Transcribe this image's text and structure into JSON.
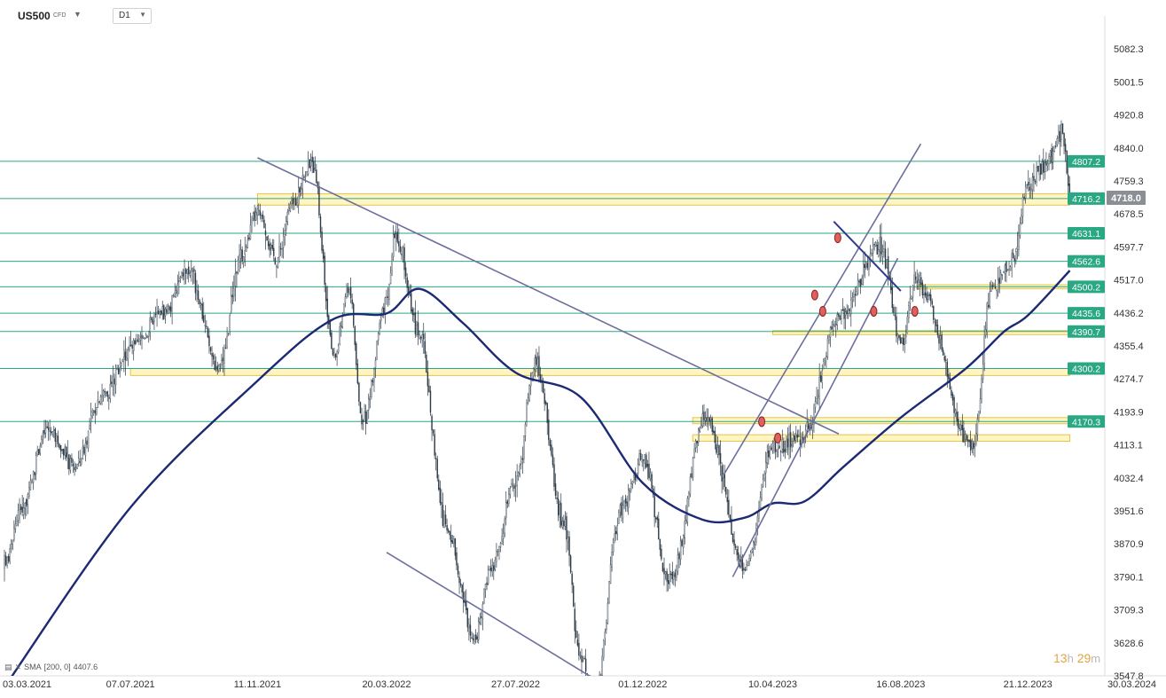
{
  "toolbar": {
    "symbol": "US500",
    "symbol_type": "CFD",
    "timeframe": "D1"
  },
  "indicator": {
    "label": "SMA",
    "params": "[200, 0]",
    "value": "4407.6"
  },
  "timer": {
    "hours": "13",
    "hours_unit": "h",
    "minutes": "29",
    "minutes_unit": "m"
  },
  "chart_data": {
    "type": "candlestick",
    "symbol": "US500",
    "timeframe": "D1",
    "x_range": [
      "03.03.2021",
      "30.03.2024"
    ],
    "x_ticks": [
      "03.03.2021",
      "07.07.2021",
      "11.11.2021",
      "20.03.2022",
      "27.07.2022",
      "01.12.2022",
      "10.04.2023",
      "16.08.2023",
      "21.12.2023",
      "30.03.2024"
    ],
    "y_range": [
      3547.8,
      5163.1
    ],
    "y_ticks": [
      "5082.3",
      "5001.5",
      "4920.8",
      "4840.0",
      "4759.3",
      "4678.5",
      "4597.7",
      "4517.0",
      "4436.2",
      "4355.4",
      "4274.7",
      "4193.9",
      "4113.1",
      "4032.4",
      "3951.6",
      "3870.9",
      "3790.1",
      "3709.3",
      "3628.6",
      "3547.8"
    ],
    "current_price": "4718.0",
    "price_path": [
      [
        "03.03.2021",
        3820
      ],
      [
        "2021-03-20",
        3960
      ],
      [
        "2021-04-15",
        4150
      ],
      [
        "2021-05-12",
        4060
      ],
      [
        "2021-06-10",
        4240
      ],
      [
        "07.07.2021",
        4350
      ],
      [
        "2021-08-10",
        4440
      ],
      [
        "2021-09-02",
        4540
      ],
      [
        "2021-10-04",
        4300
      ],
      [
        "2021-10-25",
        4570
      ],
      [
        "11.11.2021",
        4680
      ],
      [
        "2021-11-30",
        4570
      ],
      [
        "2021-12-15",
        4700
      ],
      [
        "2022-01-04",
        4800
      ],
      [
        "2022-01-27",
        4330
      ],
      [
        "2022-02-10",
        4500
      ],
      [
        "2022-02-24",
        4170
      ],
      [
        "20.03.2022",
        4460
      ],
      [
        "2022-03-29",
        4630
      ],
      [
        "2022-04-20",
        4400
      ],
      [
        "2022-05-20",
        3900
      ],
      [
        "2022-06-16",
        3640
      ],
      [
        "2022-07-01",
        3800
      ],
      [
        "27.07.2022",
        4020
      ],
      [
        "2022-08-16",
        4310
      ],
      [
        "2022-09-13",
        3930
      ],
      [
        "2022-09-30",
        3590
      ],
      [
        "2022-10-13",
        3500
      ],
      [
        "2022-11-10",
        3960
      ],
      [
        "01.12.2022",
        4080
      ],
      [
        "2022-12-28",
        3780
      ],
      [
        "2023-02-02",
        4180
      ],
      [
        "2023-03-13",
        3810
      ],
      [
        "10.04.2023",
        4110
      ],
      [
        "2023-05-10",
        4130
      ],
      [
        "2023-06-15",
        4430
      ],
      [
        "2023-07-27",
        4600
      ],
      [
        "16.08.2023",
        4370
      ],
      [
        "2023-09-01",
        4510
      ],
      [
        "2023-10-27",
        4110
      ],
      [
        "2023-11-15",
        4500
      ],
      [
        "2023-12-05",
        4560
      ],
      [
        "21.12.2023",
        4746
      ],
      [
        "2024-01-10",
        4810
      ],
      [
        "2024-01-24",
        4880
      ],
      [
        "2024-02-01",
        4730
      ]
    ],
    "sma_path": [
      [
        "03.03.2021",
        3520
      ],
      [
        "07.07.2021",
        3960
      ],
      [
        "11.11.2021",
        4270
      ],
      [
        "2022-01-25",
        4420
      ],
      [
        "20.03.2022",
        4435
      ],
      [
        "2022-04-22",
        4495
      ],
      [
        "2022-06-05",
        4410
      ],
      [
        "27.07.2022",
        4290
      ],
      [
        "2022-09-30",
        4230
      ],
      [
        "01.12.2022",
        4020
      ],
      [
        "2023-01-30",
        3930
      ],
      [
        "2023-03-13",
        3935
      ],
      [
        "10.04.2023",
        3970
      ],
      [
        "2023-05-12",
        3975
      ],
      [
        "2023-06-20",
        4060
      ],
      [
        "16.08.2023",
        4180
      ],
      [
        "2023-10-20",
        4300
      ],
      [
        "2023-11-27",
        4390
      ],
      [
        "21.12.2023",
        4430
      ],
      [
        "2024-02-01",
        4540
      ]
    ],
    "horizontal_levels": [
      {
        "label": "4807.2",
        "value": 4807.2,
        "color": "#2aa783"
      },
      {
        "label": "4716.2",
        "value": 4716.2,
        "color": "#2aa783"
      },
      {
        "label": "4631.1",
        "value": 4631.1,
        "color": "#2aa783"
      },
      {
        "label": "4562.6",
        "value": 4562.6,
        "color": "#2aa783"
      },
      {
        "label": "4500.2",
        "value": 4500.2,
        "color": "#2aa783"
      },
      {
        "label": "4435.6",
        "value": 4435.6,
        "color": "#2aa783"
      },
      {
        "label": "4390.7",
        "value": 4390.7,
        "color": "#2aa783"
      },
      {
        "label": "4300.2",
        "value": 4300.2,
        "color": "#2aa783"
      },
      {
        "label": "4170.3",
        "value": 4170.3,
        "color": "#2aa783"
      }
    ],
    "zones": [
      {
        "from": "11.11.2021",
        "to": "2024-02-01",
        "low": 4700,
        "high": 4728
      },
      {
        "from": "2023-09-01",
        "to": "2024-02-01",
        "low": 4495,
        "high": 4505
      },
      {
        "from": "10.04.2023",
        "to": "2024-02-01",
        "low": 4383,
        "high": 4393
      },
      {
        "from": "07.07.2021",
        "to": "2024-02-01",
        "low": 4283,
        "high": 4300
      },
      {
        "from": "2023-01-20",
        "to": "2024-02-01",
        "low": 4165,
        "high": 4180
      },
      {
        "from": "2023-01-20",
        "to": "2024-02-01",
        "low": 4122,
        "high": 4138
      }
    ],
    "trendlines": [
      {
        "from": [
          "11.11.2021",
          4816
        ],
        "to": [
          "2023-06-15",
          4140
        ],
        "role": "downtrend"
      },
      {
        "from": [
          "20.03.2022",
          3850
        ],
        "to": [
          "2022-10-10",
          3546
        ],
        "role": "lower-channel"
      },
      {
        "from": [
          "2023-02-20",
          4040
        ],
        "to": [
          "2023-09-05",
          4850
        ],
        "role": "channel-upper"
      },
      {
        "from": [
          "2023-03-01",
          3790
        ],
        "to": [
          "2023-08-13",
          4570
        ],
        "role": "channel-lower"
      },
      {
        "from": [
          "2023-06-10",
          4660
        ],
        "to": [
          "16.08.2023",
          4490
        ],
        "role": "short-downtrend"
      }
    ],
    "markers": [
      [
        "2023-03-30",
        4170
      ],
      [
        "2023-04-15",
        4130
      ],
      [
        "2023-05-22",
        4480
      ],
      [
        "2023-05-30",
        4440
      ],
      [
        "2023-06-14",
        4620
      ],
      [
        "2023-07-20",
        4440
      ],
      [
        "2023-08-30",
        4440
      ]
    ],
    "grid": false
  }
}
